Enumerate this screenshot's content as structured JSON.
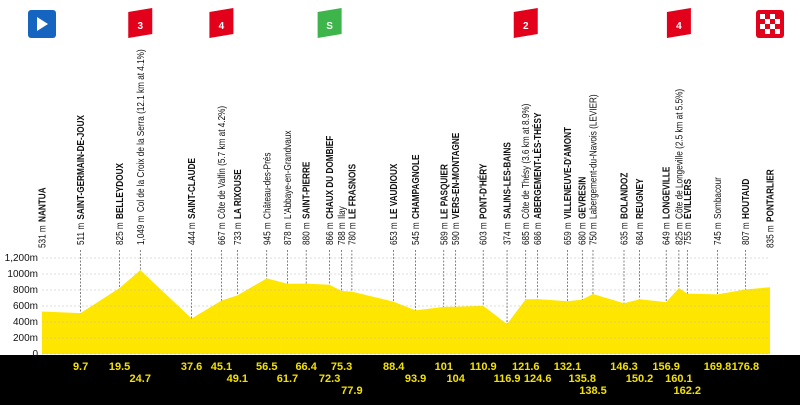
{
  "chart_data": {
    "type": "area",
    "x": [
      0,
      9.7,
      19.5,
      24.7,
      37.6,
      45.1,
      49.1,
      56.5,
      61.7,
      66.4,
      72.3,
      75.3,
      77.9,
      88.4,
      93.9,
      101,
      104,
      110.9,
      116.9,
      121.6,
      124.6,
      132.1,
      135.8,
      138.5,
      146.3,
      150.2,
      156.9,
      160.1,
      162.2,
      169.8,
      176.8,
      183
    ],
    "values": [
      531,
      511,
      825,
      1049,
      444,
      667,
      733,
      945,
      878,
      880,
      866,
      788,
      780,
      653,
      545,
      589,
      590,
      603,
      374,
      685,
      686,
      659,
      680,
      750,
      635,
      684,
      649,
      825,
      755,
      745,
      807,
      835
    ],
    "value_labels": [
      "531 m",
      "511 m",
      "825 m",
      "1,049 m",
      "444 m",
      "667 m",
      "733 m",
      "945 m",
      "878 m",
      "880 m",
      "866 m",
      "788 m",
      "780 m",
      "653 m",
      "545 m",
      "589 m",
      "590 m",
      "603 m",
      "374 m",
      "685 m",
      "686 m",
      "659 m",
      "680 m",
      "750 m",
      "635 m",
      "684 m",
      "649 m",
      "825 m",
      "755 m",
      "745 m",
      "807 m",
      "835 m"
    ],
    "names": [
      "NANTUA",
      "SAINT-GERMAIN-DE-JOUX",
      "BELLEYDOUX",
      "Col de la Croix de la Serra (12.1 km at 4.1%)",
      "SAINT-CLAUDE",
      "Côte de Valfin (5.7 km at 4.2%)",
      "LA RIXOUSE",
      "Château-des-Prés",
      "L'Abbaye-en-Grandvaux",
      "SAINT-PIERRE",
      "CHAUX DU DOMBIEF",
      "Ilay",
      "LE FRASNOIS",
      "LE VAUDIOUX",
      "CHAMPAGNOLE",
      "LE PASQUIER",
      "VERS-EN-MONTAGNE",
      "PONT-D'HÉRY",
      "SALINS-LES-BAINS",
      "Côte de Thésy (3.6 km at 8.9%)",
      "ABERGEMENT-LÈS-THÉSY",
      "VILLENEUVE-D'AMONT",
      "GEVRESIN",
      "Labergement-du-Navois (LEVIER)",
      "BOLANDOZ",
      "REUGNEY",
      "LONGEVILLE",
      "Côte de Longeville (2.5 km at 5.5%)",
      "ÉVILLERS",
      "Sombacour",
      "HOUTAUD",
      "PONTARLIER"
    ],
    "badges": [
      null,
      null,
      null,
      {
        "label": "3",
        "color": "#e2001a"
      },
      null,
      {
        "label": "4",
        "color": "#e2001a"
      },
      null,
      null,
      null,
      null,
      {
        "label": "S",
        "color": "#3db54a"
      },
      null,
      null,
      null,
      null,
      null,
      null,
      null,
      null,
      {
        "label": "2",
        "color": "#e2001a"
      },
      null,
      null,
      null,
      null,
      null,
      null,
      null,
      {
        "label": "4",
        "color": "#e2001a"
      },
      null,
      null,
      null,
      null
    ],
    "color": "#ffe600",
    "xlim": [
      0,
      183
    ],
    "ylim": [
      0,
      1250
    ],
    "yticks": [
      0,
      {
        "value": 200,
        "label": "200m"
      },
      {
        "value": 400,
        "label": "400m"
      },
      {
        "value": 600,
        "label": "600m"
      },
      {
        "value": 800,
        "label": "800m"
      },
      {
        "value": 1000,
        "label": "1000m"
      },
      {
        "value": 1200,
        "label": "1,200m"
      }
    ],
    "grid": true
  }
}
